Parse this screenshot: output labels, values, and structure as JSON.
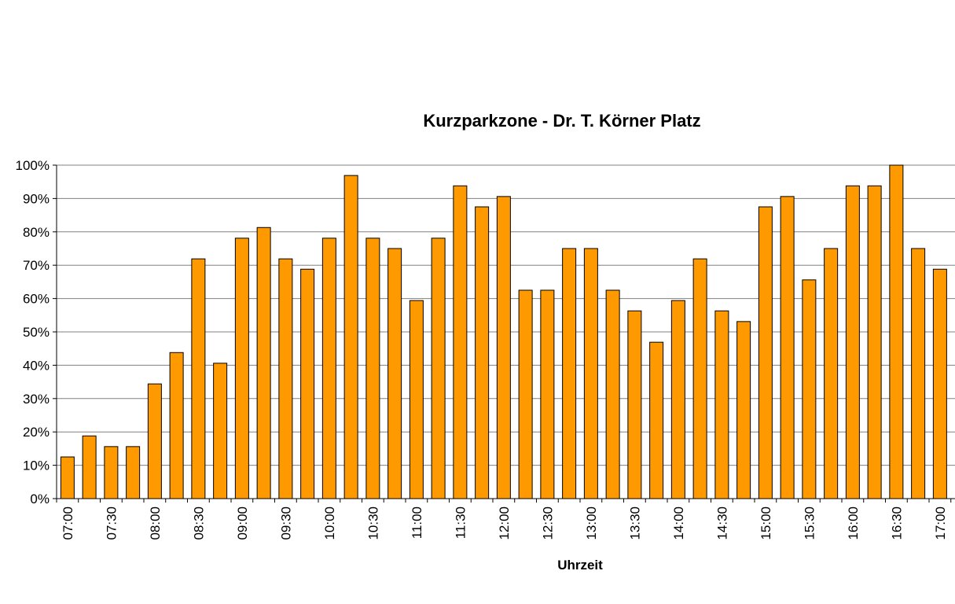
{
  "colors": {
    "bar_fill": "#FF9900",
    "bar_stroke": "#000000",
    "grid": "#808080",
    "axis": "#000000"
  },
  "chart_data": {
    "type": "bar",
    "title": "Kurzparkzone - Dr. T. Körner Platz",
    "xlabel": "Uhrzeit",
    "ylabel": "",
    "ylim": [
      0,
      100
    ],
    "yticks": [
      "0%",
      "10%",
      "20%",
      "30%",
      "40%",
      "50%",
      "60%",
      "70%",
      "80%",
      "90%",
      "100%"
    ],
    "grid": "horizontal",
    "categories": [
      "07:00",
      "07:15",
      "07:30",
      "07:45",
      "08:00",
      "08:15",
      "08:30",
      "08:45",
      "09:00",
      "09:15",
      "09:30",
      "09:45",
      "10:00",
      "10:15",
      "10:30",
      "10:45",
      "11:00",
      "11:15",
      "11:30",
      "11:45",
      "12:00",
      "12:15",
      "12:30",
      "12:45",
      "13:00",
      "13:15",
      "13:30",
      "13:45",
      "14:00",
      "14:15",
      "14:30",
      "14:45",
      "15:00",
      "15:15",
      "15:30",
      "15:45",
      "16:00",
      "16:15",
      "16:30",
      "16:45",
      "17:00"
    ],
    "visible_tick_labels": [
      "07:00",
      "07:30",
      "08:00",
      "08:30",
      "09:00",
      "09:30",
      "10:00",
      "10:30",
      "11:00",
      "11:30",
      "12:00",
      "12:30",
      "13:00",
      "13:30",
      "14:00",
      "14:30",
      "15:00",
      "15:30",
      "16:00",
      "16:30",
      "17:00"
    ],
    "values": [
      12.5,
      18.8,
      15.6,
      15.6,
      34.4,
      43.8,
      71.9,
      40.6,
      78.1,
      81.3,
      71.9,
      68.8,
      78.1,
      96.9,
      78.1,
      75.0,
      59.4,
      78.1,
      93.8,
      87.5,
      90.6,
      62.5,
      62.5,
      75.0,
      75.0,
      62.5,
      56.3,
      46.9,
      59.4,
      71.9,
      56.3,
      53.1,
      87.5,
      90.6,
      65.6,
      75.0,
      93.8,
      93.8,
      100.0,
      75.0,
      68.8
    ]
  }
}
